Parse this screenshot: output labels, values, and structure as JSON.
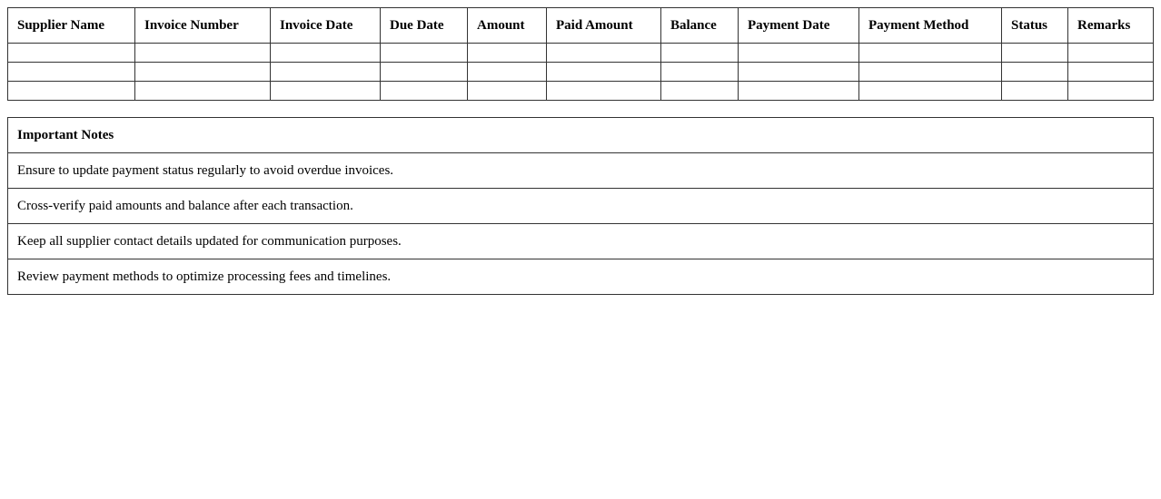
{
  "invoice_table": {
    "columns": [
      "Supplier Name",
      "Invoice Number",
      "Invoice Date",
      "Due Date",
      "Amount",
      "Paid Amount",
      "Balance",
      "Payment Date",
      "Payment Method",
      "Status",
      "Remarks"
    ],
    "rows": [
      [
        "",
        "",
        "",
        "",
        "",
        "",
        "",
        "",
        "",
        "",
        ""
      ],
      [
        "",
        "",
        "",
        "",
        "",
        "",
        "",
        "",
        "",
        "",
        ""
      ],
      [
        "",
        "",
        "",
        "",
        "",
        "",
        "",
        "",
        "",
        "",
        ""
      ]
    ]
  },
  "notes": {
    "title": "Important Notes",
    "items": [
      "Ensure to update payment status regularly to avoid overdue invoices.",
      "Cross-verify paid amounts and balance after each transaction.",
      "Keep all supplier contact details updated for communication purposes.",
      "Review payment methods to optimize processing fees and timelines."
    ]
  }
}
